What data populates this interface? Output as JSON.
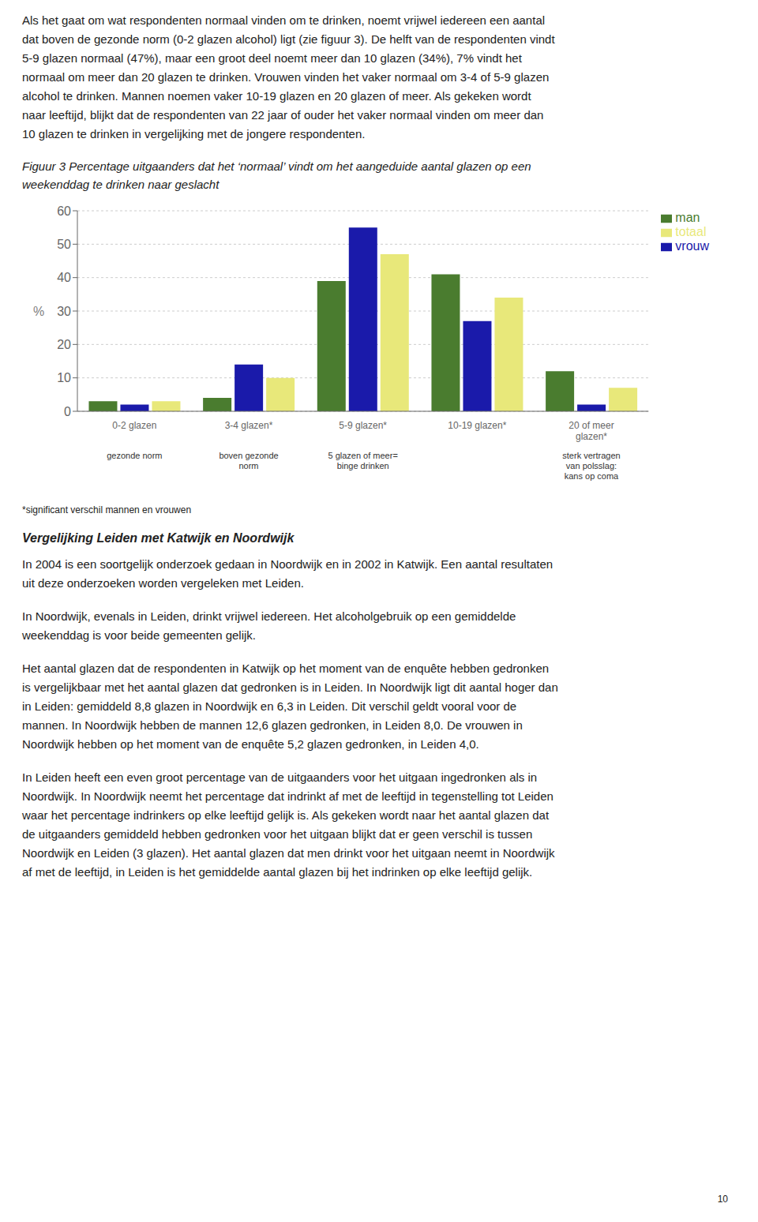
{
  "chart_data": {
    "type": "bar",
    "title": "Figuur 3  Percentage uitgaanders dat het ‘normaal’ vindt om het aangeduide aantal glazen op een\nweekenddag te drinken naar geslacht",
    "categories": [
      "0-2 glazen",
      "3-4 glazen*",
      "5-9 glazen*",
      "10-19 glazen*",
      "20 of meer\nglazen*"
    ],
    "category_notes": [
      "gezonde norm",
      "boven gezonde\nnorm",
      "5 glazen of meer=\nbinge drinken",
      null,
      "sterk vertragen\nvan polsslag:\nkans op coma"
    ],
    "series": [
      {
        "name": "man",
        "color": "#4a7c2f",
        "values": [
          3,
          4,
          39,
          41,
          12
        ]
      },
      {
        "name": "vrouw",
        "color": "#1a1aaa",
        "values": [
          2,
          14,
          55,
          27,
          2
        ]
      },
      {
        "name": "totaal",
        "color": "#e8e87a",
        "values": [
          3,
          10,
          47,
          34,
          7
        ]
      }
    ],
    "ylabel": "%",
    "ylim": [
      0,
      60
    ],
    "yticks": [
      0,
      10,
      20,
      30,
      40,
      50,
      60
    ],
    "grid": true,
    "legend": "right",
    "annotations": [
      "Als het gaat om wat respondenten normaal vinden om te drinken, noemt vrijwel iedereen een aantal\ndat boven de gezonde norm (0-2 glazen alcohol) ligt (zie figuur 3). De helft van de respondenten vindt\n5-9 glazen normaal (47%), maar een groot deel noemt meer dan 10 glazen (34%), 7% vindt het\nnormaal om meer dan 20 glazen te drinken. Vrouwen vinden het vaker normaal om 3-4 of 5-9 glazen\nalcohol te drinken. Mannen noemen vaker 10-19 glazen en 20 glazen of meer. Als gekeken wordt\nnaar leeftijd, blijkt dat de respondenten van 22 jaar of ouder het vaker normaal vinden om meer dan\n10 glazen te drinken in vergelijking met de jongere respondenten.",
      "*significant verschil mannen en vrouwen",
      "Vergelijking Leiden met Katwijk en Noordwijk",
      "In 2004 is een soortgelijk onderzoek gedaan in Noordwijk en in 2002 in Katwijk. Een aantal resultaten\nuit deze onderzoeken worden vergeleken met Leiden.",
      "In Noordwijk, evenals in Leiden, drinkt vrijwel iedereen. Het alcoholgebruik op een gemiddelde\nweekenddag is voor beide gemeenten gelijk.",
      "Het aantal glazen dat de respondenten in Katwijk op het moment van de enquête hebben gedronken\nis vergelijkbaar met het aantal glazen dat gedronken is in Leiden. In Noordwijk ligt dit aantal hoger dan\nin Leiden: gemiddeld 8,8 glazen in Noordwijk en 6,3 in Leiden. Dit verschil geldt vooral voor de\nmannen. In Noordwijk hebben de mannen 12,6 glazen gedronken, in Leiden 8,0. De vrouwen in\nNoordwijk hebben op het moment van de enquête 5,2 glazen gedronken, in Leiden 4,0.",
      "In Leiden heeft een even groot percentage van de uitgaanders voor het uitgaan ingedronken als in\nNoordwijk. In Noordwijk neemt het percentage dat indrinkt af met de leeftijd in tegenstelling tot Leiden\nwaar het percentage indrinkers op elke leeftijd gelijk is. Als gekeken wordt naar het aantal glazen dat\nde uitgaanders gemiddeld hebben gedronken voor het uitgaan blijkt dat er geen verschil is tussen\nNoordwijk en Leiden (3 glazen). Het aantal glazen dat men drinkt voor het uitgaan neemt in Noordwijk\naf met de leeftijd, in Leiden is het gemiddelde aantal glazen bij het indrinken op elke leeftijd gelijk.",
      "10"
    ]
  }
}
